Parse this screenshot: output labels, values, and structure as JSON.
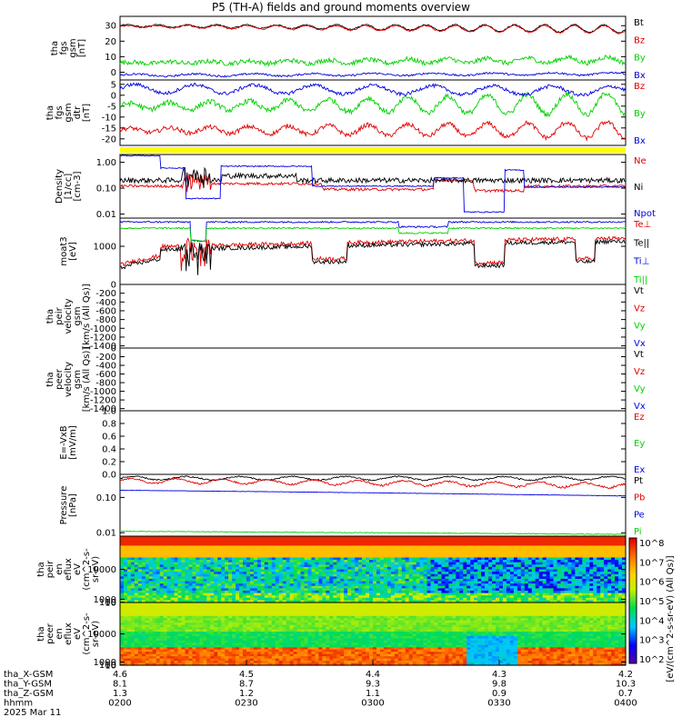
{
  "title": "P5 (TH-A) fields and ground moments overview",
  "colors": {
    "black": "#000000",
    "red": "#e00000",
    "green": "#00d000",
    "blue": "#0000e0",
    "yellow": "#ffff00"
  },
  "chart_data": [
    {
      "type": "line",
      "name": "fgs_gsm",
      "ylabel_lines": [
        "tha",
        "fgs",
        "gsm",
        "[nT]"
      ],
      "yticks": [
        "30",
        "20",
        "10",
        "0"
      ],
      "ylim": [
        -5,
        36
      ],
      "series": [
        {
          "name": "Bt",
          "color": "#000000",
          "shape": "level",
          "level": 30,
          "trend": -2,
          "amp": 2,
          "osc": 4,
          "noise": 0.4,
          "grow": true
        },
        {
          "name": "Bz",
          "color": "#e00000",
          "shape": "level",
          "level": 29.5,
          "trend": -2,
          "amp": 2,
          "osc": 4,
          "noise": 0.4,
          "grow": true
        },
        {
          "name": "By",
          "color": "#00d000",
          "shape": "level",
          "level": 6,
          "trend": 2,
          "amp": 1.5,
          "osc": 3,
          "noise": 1.5,
          "grow": true
        },
        {
          "name": "Bx",
          "color": "#0000e0",
          "shape": "level",
          "level": -2,
          "trend": 1,
          "amp": 0.8,
          "osc": 2,
          "noise": 0.6,
          "grow": false
        }
      ]
    },
    {
      "type": "line",
      "name": "fgs_gsm_detrended",
      "ylabel_lines": [
        "tha",
        "fgs",
        "gsm",
        "dtr",
        "[nT]"
      ],
      "yticks": [
        "5",
        "0",
        "-5",
        "-10",
        "-15",
        "-20"
      ],
      "ylim": [
        -23,
        7
      ],
      "series": [
        {
          "name": "Bz",
          "color": "#e00000",
          "shape": "level",
          "level": -16,
          "trend": 0,
          "amp": 3,
          "osc": 3,
          "noise": 1,
          "grow": true
        },
        {
          "name": "By",
          "color": "#00d000",
          "shape": "level",
          "level": -5,
          "trend": 1,
          "amp": 4,
          "osc": 3,
          "noise": 1.2,
          "grow": true
        },
        {
          "name": "Bx",
          "color": "#0000e0",
          "shape": "level",
          "level": 3,
          "trend": -1,
          "amp": 2,
          "osc": 2,
          "noise": 0.8,
          "grow": false
        }
      ]
    },
    {
      "type": "line",
      "name": "density",
      "log": true,
      "ylabel_lines": [
        "Density",
        "[1/cc]",
        "[cm-3]"
      ],
      "yticks": [
        "1.00",
        "0.10",
        "0.01"
      ],
      "ylim": [
        0.007,
        2
      ],
      "series": [
        {
          "name": "Ne",
          "color": "#e00000",
          "shape": "density_ne",
          "noise": 0.12
        },
        {
          "name": "Ni",
          "color": "#000000",
          "shape": "density_ni",
          "noise": 0.15
        },
        {
          "name": "Npot",
          "color": "#0000e0",
          "shape": "density_npot",
          "noise": 0.05
        }
      ]
    },
    {
      "type": "line",
      "name": "temperature",
      "log": true,
      "ylabel_lines": [
        "moat3",
        "[eV]"
      ],
      "yticks": [
        "1000"
      ],
      "ylim": [
        60,
        8000
      ],
      "series": [
        {
          "name": "Te⊥",
          "color": "#e00000",
          "shape": "temp_te",
          "noise": 0.15
        },
        {
          "name": "Te||",
          "color": "#000000",
          "shape": "temp_te2",
          "noise": 0.15
        },
        {
          "name": "Ti⊥",
          "color": "#0000e0",
          "shape": "temp_ti",
          "noise": 0.06
        },
        {
          "name": "Ti||",
          "color": "#00d000",
          "shape": "temp_ti2",
          "noise": 0.06
        }
      ]
    },
    {
      "type": "line",
      "name": "peir_velocity",
      "ylabel_lines": [
        "tha",
        "peir",
        "velocity",
        "gsm",
        "[km/s (All Qs)]"
      ],
      "yticks": [
        "0",
        "-200",
        "-400",
        "-600",
        "-800",
        "-1000",
        "-1200",
        "-1400"
      ],
      "ylim": [
        -1450,
        0
      ],
      "series": [
        {
          "name": "Vt",
          "color": "#000000",
          "shape": "none"
        },
        {
          "name": "Vz",
          "color": "#e00000",
          "shape": "none"
        },
        {
          "name": "Vy",
          "color": "#00d000",
          "shape": "none"
        },
        {
          "name": "Vx",
          "color": "#0000e0",
          "shape": "none"
        }
      ]
    },
    {
      "type": "line",
      "name": "peer_velocity",
      "ylabel_lines": [
        "tha",
        "peer",
        "velocity",
        "gsm",
        "[km/s (All Qs)]"
      ],
      "yticks": [
        "0",
        "-200",
        "-400",
        "-600",
        "-800",
        "-1000",
        "-1200",
        "-1400"
      ],
      "ylim": [
        -1450,
        0
      ],
      "series": [
        {
          "name": "Vt",
          "color": "#000000",
          "shape": "none"
        },
        {
          "name": "Vz",
          "color": "#e00000",
          "shape": "none"
        },
        {
          "name": "Vy",
          "color": "#00d000",
          "shape": "none"
        },
        {
          "name": "Vx",
          "color": "#0000e0",
          "shape": "none"
        }
      ]
    },
    {
      "type": "line",
      "name": "efield",
      "ylabel_lines": [
        "E=-VxB",
        "[mV/m]"
      ],
      "yticks": [
        "1.0",
        "0.8",
        "0.6",
        "0.4",
        "0.2",
        "0.0"
      ],
      "ylim": [
        0,
        1
      ],
      "series": [
        {
          "name": "Ez",
          "color": "#e00000",
          "shape": "none"
        },
        {
          "name": "Ey",
          "color": "#00d000",
          "shape": "none"
        },
        {
          "name": "Ex",
          "color": "#0000e0",
          "shape": "none"
        }
      ]
    },
    {
      "type": "line",
      "name": "pressure",
      "log": true,
      "ylabel_lines": [
        "Pressure",
        "[nPa]"
      ],
      "yticks": [
        "0.10",
        "0.01"
      ],
      "ylim": [
        0.008,
        0.45
      ],
      "series": [
        {
          "name": "Pt",
          "color": "#000000",
          "shape": "press_pt",
          "noise": 0.03
        },
        {
          "name": "Pb",
          "color": "#e00000",
          "shape": "press_pb",
          "noise": 0.03
        },
        {
          "name": "Pe",
          "color": "#0000e0",
          "shape": "press_pe",
          "noise": 0.01
        },
        {
          "name": "Pi",
          "color": "#00d000",
          "shape": "press_pi",
          "noise": 0.01
        }
      ]
    },
    {
      "type": "heatmap",
      "name": "peir_eflux",
      "ylabel_lines": [
        "tha",
        "peir",
        "en",
        "eflux",
        "eV",
        "(cm^2-s-",
        "sr-eV)"
      ],
      "yticks": [
        "10000",
        "1000",
        "100",
        "10"
      ],
      "ylim": [
        6,
        20000
      ]
    },
    {
      "type": "heatmap",
      "name": "peer_eflux",
      "ylabel_lines": [
        "tha",
        "peer",
        "en",
        "eflux",
        "eV",
        "(cm^2-s-",
        "sr-eV)"
      ],
      "yticks": [
        "10000",
        "1000",
        "100",
        "10"
      ],
      "ylim": [
        6,
        20000
      ]
    }
  ],
  "colorbar": {
    "ticks": [
      "10^8",
      "10^7",
      "10^6",
      "10^5",
      "10^4",
      "10^3",
      "10^2"
    ],
    "label": "[eV/(cm^2-s-sr-eV) (All Qs)]"
  },
  "xaxis": {
    "rows": [
      {
        "label": "tha_X-GSM",
        "values": [
          "4.6",
          "4.5",
          "4.4",
          "4.3",
          "4.2"
        ]
      },
      {
        "label": "tha_Y-GSM",
        "values": [
          "8.1",
          "8.7",
          "9.3",
          "9.8",
          "10.3"
        ]
      },
      {
        "label": "tha_Z-GSM",
        "values": [
          "1.3",
          "1.2",
          "1.1",
          "0.9",
          "0.7"
        ]
      },
      {
        "label": "hhmm",
        "values": [
          "0200",
          "0230",
          "0300",
          "0330",
          "0400"
        ]
      }
    ],
    "date": "2025 Mar 11"
  }
}
